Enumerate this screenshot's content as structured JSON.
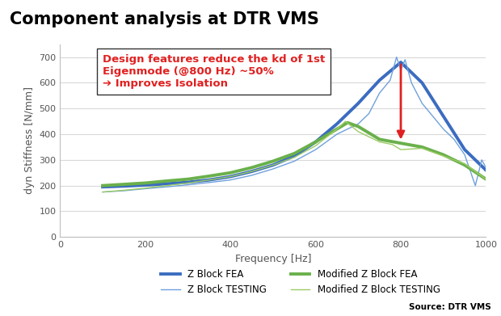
{
  "chart_data": {
    "type": "line",
    "title": "Component analysis at DTR VMS",
    "annotation": [
      "Design features reduce the kd of 1st",
      "Eigenmode (@800 Hz) ~50%",
      "➔ Improves Isolation"
    ],
    "source": "Source: DTR VMS",
    "xlabel": "Frequency [Hz]",
    "ylabel": "dyn Stiffness [N/mm]",
    "xlim": [
      0,
      1000
    ],
    "xticks": [
      0,
      200,
      400,
      600,
      800,
      1000
    ],
    "ylim": [
      0,
      750
    ],
    "yticks": [
      0,
      100,
      200,
      300,
      400,
      500,
      600,
      700
    ],
    "grid": true,
    "legend": "bottom",
    "arrow": {
      "x": 800,
      "y_start": 680,
      "y_end": 370,
      "color": "#e02020"
    },
    "series": [
      {
        "name": "Z Block FEA",
        "color": "#3b6cc0",
        "line_style": "thick",
        "x": [
          100,
          150,
          200,
          250,
          300,
          350,
          400,
          450,
          500,
          550,
          600,
          650,
          700,
          750,
          800,
          850,
          900,
          950,
          1000
        ],
        "values": [
          195,
          198,
          202,
          207,
          213,
          222,
          235,
          255,
          280,
          315,
          370,
          440,
          520,
          610,
          680,
          600,
          470,
          340,
          260
        ]
      },
      {
        "name": "Z Block TESTING",
        "color": "#6fa0dc",
        "line_style": "thin",
        "x": [
          100,
          150,
          200,
          250,
          300,
          350,
          400,
          450,
          500,
          550,
          600,
          625,
          650,
          675,
          700,
          725,
          750,
          775,
          790,
          800,
          810,
          825,
          850,
          875,
          900,
          925,
          950,
          975,
          990,
          1000
        ],
        "values": [
          175,
          180,
          188,
          195,
          203,
          212,
          222,
          240,
          265,
          295,
          340,
          370,
          400,
          420,
          440,
          480,
          560,
          610,
          700,
          650,
          690,
          600,
          520,
          470,
          420,
          380,
          320,
          200,
          300,
          270
        ]
      },
      {
        "name": "Modified Z Block FEA",
        "color": "#6ab04c",
        "line_style": "thick",
        "x": [
          100,
          150,
          200,
          250,
          300,
          350,
          400,
          450,
          500,
          550,
          600,
          650,
          675,
          700,
          750,
          800,
          850,
          900,
          950,
          1000
        ],
        "values": [
          200,
          205,
          210,
          218,
          225,
          237,
          250,
          270,
          295,
          325,
          370,
          420,
          445,
          430,
          380,
          365,
          350,
          320,
          280,
          225
        ]
      },
      {
        "name": "Modified Z Block TESTING",
        "color": "#9ccc65",
        "line_style": "thin",
        "x": [
          100,
          150,
          200,
          250,
          300,
          350,
          400,
          450,
          500,
          550,
          600,
          650,
          670,
          700,
          750,
          780,
          800,
          850,
          900,
          950,
          1000
        ],
        "values": [
          175,
          182,
          190,
          200,
          210,
          222,
          235,
          255,
          280,
          310,
          355,
          420,
          450,
          410,
          370,
          360,
          340,
          345,
          315,
          285,
          225
        ]
      }
    ]
  }
}
